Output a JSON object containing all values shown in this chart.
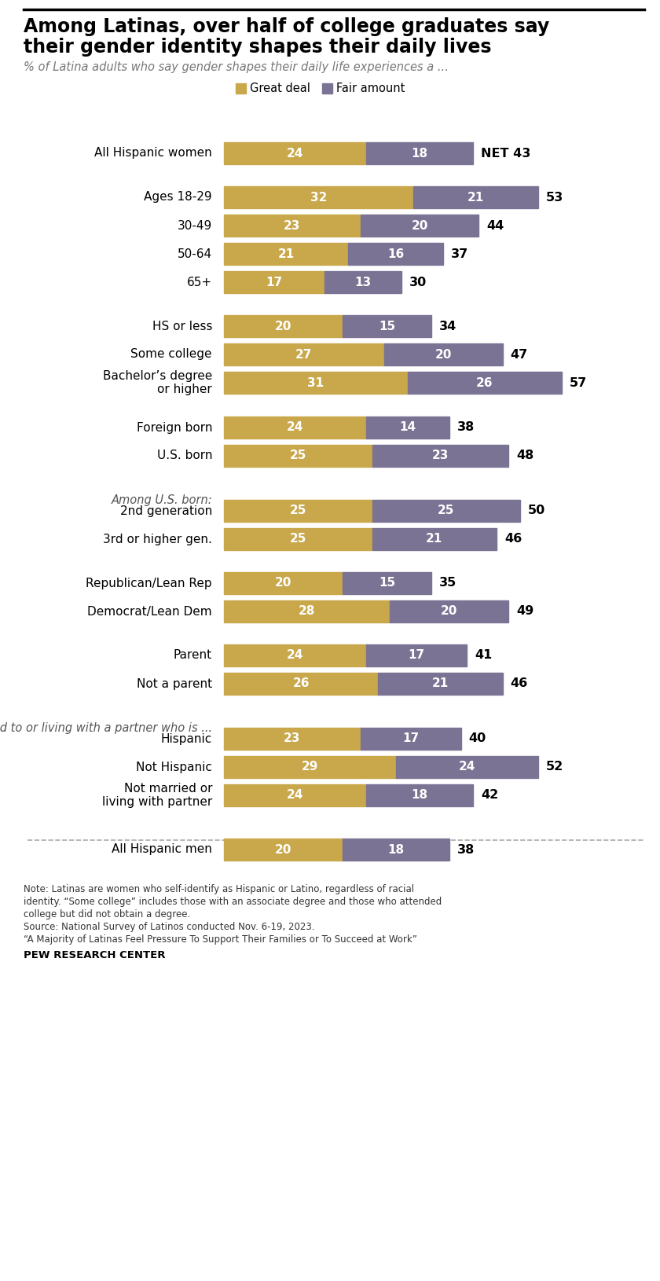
{
  "title_line1": "Among Latinas, over half of college graduates say",
  "title_line2": "their gender identity shapes their daily lives",
  "subtitle": "% of Latina adults who say gender shapes their daily life experiences a ...",
  "legend": [
    "Great deal",
    "Fair amount"
  ],
  "gold_color": "#C9A84C",
  "gray_color": "#7B7394",
  "categories": [
    "All Hispanic women",
    "Ages 18-29",
    "30-49",
    "50-64",
    "65+",
    "HS or less",
    "Some college",
    "Bachelor’s degree\nor higher",
    "Foreign born",
    "U.S. born",
    "2nd generation",
    "3rd or higher gen.",
    "Republican/Lean Rep",
    "Democrat/Lean Dem",
    "Parent",
    "Not a parent",
    "Hispanic",
    "Not Hispanic",
    "Not married or\nliving with partner",
    "All Hispanic men"
  ],
  "great_deal": [
    24,
    32,
    23,
    21,
    17,
    20,
    27,
    31,
    24,
    25,
    25,
    25,
    20,
    28,
    24,
    26,
    23,
    29,
    24,
    20
  ],
  "fair_amount": [
    18,
    21,
    20,
    16,
    13,
    15,
    20,
    26,
    14,
    23,
    25,
    21,
    15,
    20,
    17,
    21,
    17,
    24,
    18,
    18
  ],
  "net": [
    43,
    53,
    44,
    37,
    30,
    34,
    47,
    57,
    38,
    48,
    50,
    46,
    35,
    49,
    41,
    46,
    40,
    52,
    42,
    38
  ],
  "net_prefix": [
    "NET ",
    "",
    "",
    "",
    "",
    "",
    "",
    "",
    "",
    "",
    "",
    "",
    "",
    "",
    "",
    "",
    "",
    "",
    "",
    ""
  ],
  "section_headers": {
    "10": "Among U.S. born:",
    "16": "Married to or living with a partner who is ..."
  },
  "footnote_lines": [
    "Note: Latinas are women who self-identify as Hispanic or Latino, regardless of racial",
    "identity. “Some college” includes those with an associate degree and those who attended",
    "college but did not obtain a degree.",
    "Source: National Survey of Latinos conducted Nov. 6-19, 2023.",
    "“A Majority of Latinas Feel Pressure To Support Their Families or To Succeed at Work”"
  ],
  "source_label": "PEW RESEARCH CENTER",
  "bar_height": 0.52
}
